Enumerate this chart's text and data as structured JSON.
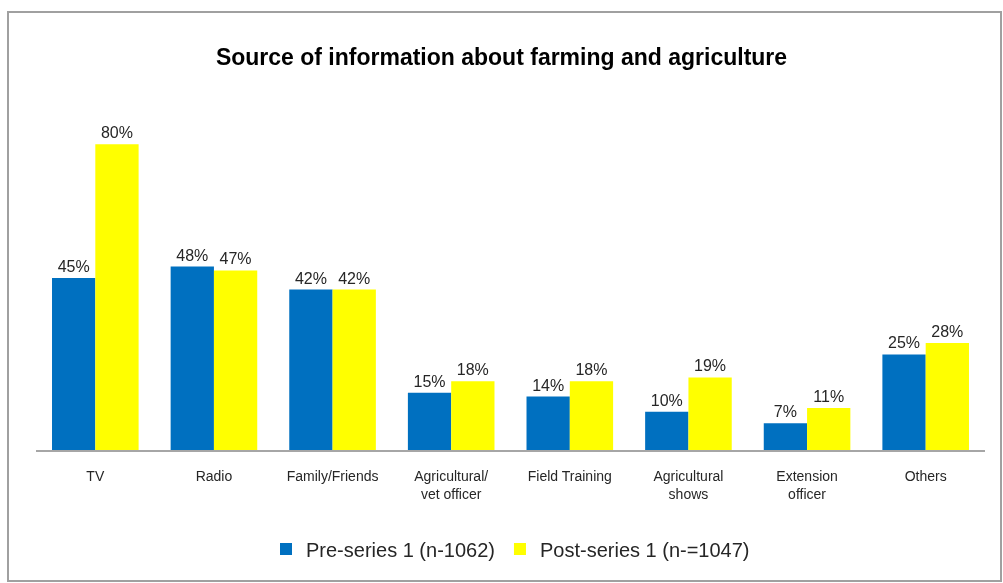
{
  "chart_data": {
    "type": "bar",
    "title": "Source of information about farming and agriculture",
    "categories": [
      "TV",
      "Radio",
      "Family/Friends",
      "Agricultural/\nvet officer",
      "Field Training",
      "Agricultural\nshows",
      "Extension\nofficer",
      "Others"
    ],
    "series": [
      {
        "name": "Pre-series 1 (n-1062)",
        "color": "#0070c0",
        "values": [
          45,
          48,
          42,
          15,
          14,
          10,
          7,
          25
        ],
        "value_labels": [
          "45%",
          "48%",
          "42%",
          "15%",
          "14%",
          "10%",
          "7%",
          "25%"
        ]
      },
      {
        "name": "Post-series 1 (n-=1047)",
        "color": "#ffff00",
        "values": [
          80,
          47,
          42,
          18,
          18,
          19,
          11,
          28
        ],
        "value_labels": [
          "80%",
          "47%",
          "42%",
          "18%",
          "18%",
          "19%",
          "11%",
          "28%"
        ]
      }
    ],
    "legend": "bottom",
    "tick_labels": "x"
  }
}
